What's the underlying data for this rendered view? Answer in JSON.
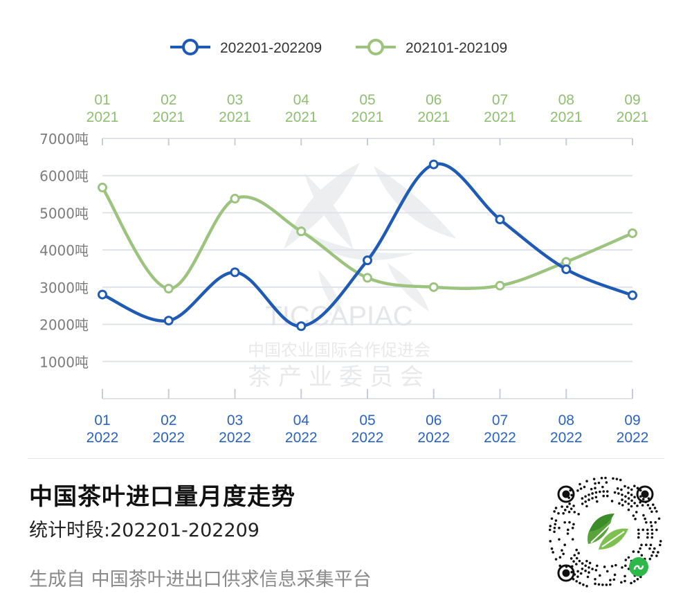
{
  "legend": {
    "series_2022": "202201-202209",
    "series_2021": "202101-202109"
  },
  "watermark": {
    "acronym": "TICCAPIAC",
    "org_name": "中国农业国际合作促进会",
    "committee": "茶产业委员会"
  },
  "footer": {
    "title": "中国茶叶进口量月度走势",
    "period": "统计时段:202201-202209",
    "source": "生成自 中国茶叶进出口供求信息采集平台"
  },
  "colors": {
    "blue": "#1f5bb5",
    "green": "#9cc47f",
    "grid": "#dfe2ea",
    "axis_text": "#7c7c7c",
    "blue_text": "#2a63c2",
    "green_text": "#8fbf70"
  },
  "chart_data": {
    "type": "line",
    "ylim": [
      0,
      7000
    ],
    "y_ticks": [
      {
        "value": 1000,
        "label": "1000吨"
      },
      {
        "value": 2000,
        "label": "2000吨"
      },
      {
        "value": 3000,
        "label": "3000吨"
      },
      {
        "value": 4000,
        "label": "4000吨"
      },
      {
        "value": 5000,
        "label": "5000吨"
      },
      {
        "value": 6000,
        "label": "6000吨"
      },
      {
        "value": 7000,
        "label": "7000吨"
      }
    ],
    "bottom_axis": {
      "months": [
        "01",
        "02",
        "03",
        "04",
        "05",
        "06",
        "07",
        "08",
        "09"
      ],
      "year": "2022"
    },
    "top_axis": {
      "months": [
        "01",
        "02",
        "03",
        "04",
        "05",
        "06",
        "07",
        "08",
        "09"
      ],
      "year": "2021"
    },
    "series": [
      {
        "name": "202201-202209",
        "color_key": "blue",
        "values": [
          2800,
          2100,
          3400,
          1950,
          3720,
          6300,
          4820,
          3480,
          2780
        ]
      },
      {
        "name": "202101-202109",
        "color_key": "green",
        "values": [
          5680,
          2960,
          5380,
          4500,
          3250,
          3000,
          3040,
          3680,
          4450
        ]
      }
    ]
  }
}
